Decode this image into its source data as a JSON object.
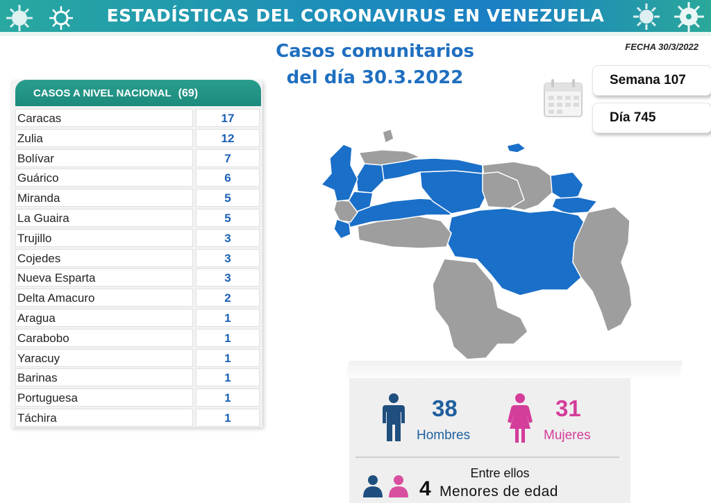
{
  "header": {
    "title": "ESTADÍSTICAS DEL CORONAVIRUS EN VENEZUELA"
  },
  "fecha": "FECHA 30/3/2022",
  "subtitle": {
    "line1": "Casos comunitarios",
    "line2": "del día 30.3.2022"
  },
  "semana": "Semana 107",
  "dia": "Día 745",
  "table": {
    "title": "CASOS A NIVEL NACIONAL",
    "total": "(69)",
    "rows": [
      {
        "state": "Caracas",
        "value": "17"
      },
      {
        "state": "Zulia",
        "value": "12"
      },
      {
        "state": "Bolívar",
        "value": "7"
      },
      {
        "state": "Guárico",
        "value": "6"
      },
      {
        "state": "Miranda",
        "value": "5"
      },
      {
        "state": "La Guaira",
        "value": "5"
      },
      {
        "state": "Trujillo",
        "value": "3"
      },
      {
        "state": "Cojedes",
        "value": "3"
      },
      {
        "state": "Nueva Esparta",
        "value": "3"
      },
      {
        "state": "Delta Amacuro",
        "value": "2"
      },
      {
        "state": "Aragua",
        "value": "1"
      },
      {
        "state": "Carabobo",
        "value": "1"
      },
      {
        "state": "Yaracuy",
        "value": "1"
      },
      {
        "state": "Barinas",
        "value": "1"
      },
      {
        "state": "Portuguesa",
        "value": "1"
      },
      {
        "state": "Táchira",
        "value": "1"
      }
    ]
  },
  "stats": {
    "hombres_count": "38",
    "hombres_label": "Hombres",
    "mujeres_count": "31",
    "mujeres_label": "Mujeres",
    "entre": "Entre ellos",
    "menores_count": "4",
    "menores_label": "Menores de edad"
  },
  "colors": {
    "header_start": "#28a8a0",
    "header_end": "#1a7fc4",
    "subtitle": "#1f6fc0",
    "table_header": "#1b8a7d",
    "value_text": "#1a5fb4",
    "map_affected": "#1a6fc8",
    "map_unaffected": "#9e9e9e",
    "male": "#1f5f9e",
    "female": "#d43d9a"
  },
  "icons": [
    "virus-icon",
    "calendar-icon",
    "male-icon",
    "female-icon",
    "child-icon"
  ]
}
